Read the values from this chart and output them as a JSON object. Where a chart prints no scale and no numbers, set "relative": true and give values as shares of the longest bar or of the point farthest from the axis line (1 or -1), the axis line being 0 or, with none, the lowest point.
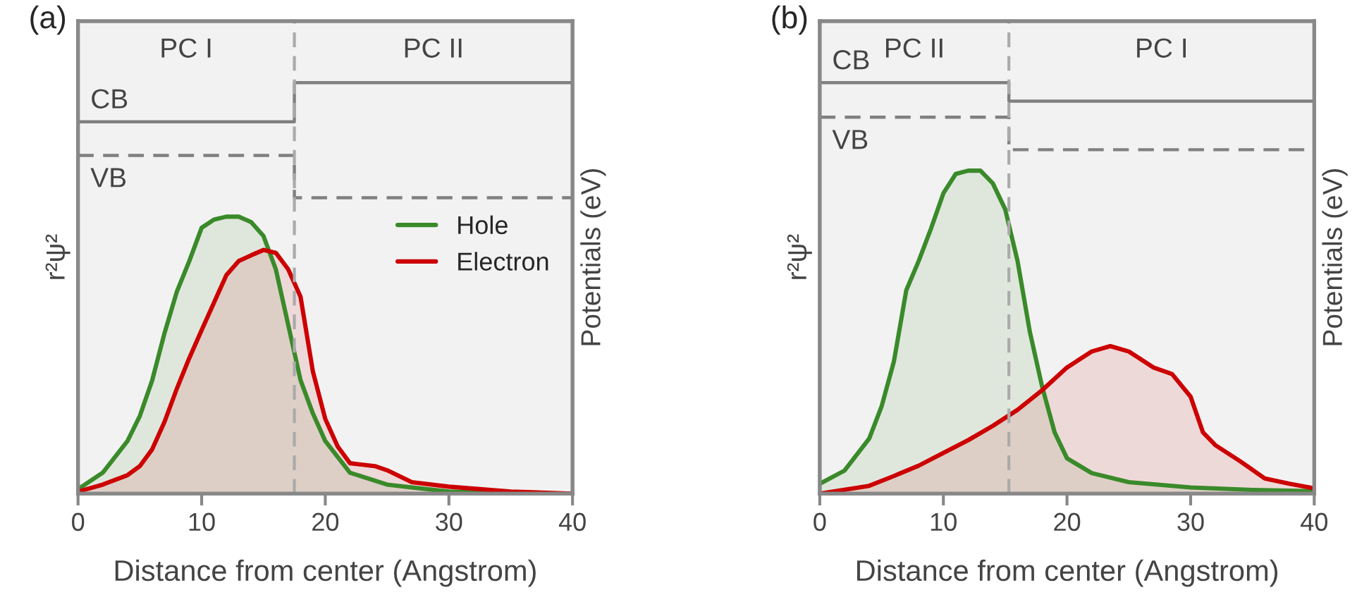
{
  "chart_data": [
    {
      "type": "area",
      "title": "(a)",
      "xlabel": "Distance from center (Angstrom)",
      "ylabel": "r²ψ²",
      "y2label": "Potentials (eV)",
      "relative": true,
      "xlim": [
        0,
        40
      ],
      "xticks": [
        0,
        10,
        20,
        30,
        40
      ],
      "tick_labels": "x",
      "legend": "center right",
      "grid": false,
      "series": [
        {
          "name": "Hole",
          "color": "#3a8a2a",
          "x": [
            0,
            2,
            4,
            5,
            6,
            7,
            8,
            9,
            10,
            11,
            12,
            13,
            14,
            15,
            16,
            17,
            18,
            19,
            20,
            22,
            25,
            30,
            35,
            40
          ],
          "values": [
            0.011,
            0.051,
            0.128,
            0.189,
            0.276,
            0.391,
            0.492,
            0.566,
            0.647,
            0.667,
            0.674,
            0.674,
            0.661,
            0.627,
            0.546,
            0.411,
            0.276,
            0.195,
            0.128,
            0.051,
            0.022,
            0.005,
            0,
            0
          ]
        },
        {
          "name": "Electron",
          "color": "#cc0000",
          "x": [
            0,
            2,
            4,
            5,
            6,
            7,
            8,
            9,
            10,
            11,
            12,
            13,
            14,
            15,
            16,
            17,
            18,
            19,
            20,
            21,
            22,
            24,
            25,
            27,
            30,
            35,
            40
          ],
          "values": [
            0.005,
            0.022,
            0.045,
            0.067,
            0.108,
            0.175,
            0.256,
            0.33,
            0.398,
            0.465,
            0.532,
            0.566,
            0.58,
            0.593,
            0.586,
            0.546,
            0.479,
            0.297,
            0.182,
            0.115,
            0.074,
            0.067,
            0.057,
            0.028,
            0.017,
            0.005,
            0
          ]
        },
        {
          "type": "step",
          "color": "#808080",
          "line_style": "solid",
          "x": [
            0,
            17.5,
            40
          ],
          "values": [
            0.905,
            1,
            1
          ]
        },
        {
          "type": "step",
          "color": "#808080",
          "line_style": "dashed",
          "x": [
            0,
            17.5,
            40
          ],
          "values": [
            0.823,
            0.72,
            0.72
          ]
        }
      ],
      "ref_lines": [
        {
          "axis": "x",
          "value": 17.5,
          "color": "#aaaaaa",
          "line_style": "dashed"
        }
      ],
      "bands": [
        {
          "axis": "x",
          "from": 0,
          "to": 17.5,
          "label": "PC I",
          "color": "#f2f2f2"
        },
        {
          "axis": "x",
          "from": 17.5,
          "to": 40,
          "label": "PC II",
          "color": "#f2f2f2"
        }
      ],
      "annotations": [
        "CB",
        "VB"
      ]
    },
    {
      "type": "area",
      "title": "(b)",
      "xlabel": "Distance from center (Angstrom)",
      "ylabel": "r²ψ²",
      "y2label": "Potentials (eV)",
      "relative": true,
      "xlim": [
        0,
        40
      ],
      "xticks": [
        0,
        10,
        20,
        30,
        40
      ],
      "tick_labels": "x",
      "grid": false,
      "series": [
        {
          "color": "#3a8a2a",
          "x": [
            0,
            2,
            4,
            5,
            6,
            7,
            8,
            9,
            10,
            11,
            12,
            13,
            14,
            15,
            16,
            17,
            18,
            19,
            20,
            22,
            25,
            30,
            35,
            40
          ],
          "values": [
            0.024,
            0.056,
            0.134,
            0.212,
            0.322,
            0.495,
            0.566,
            0.645,
            0.731,
            0.778,
            0.786,
            0.786,
            0.755,
            0.692,
            0.566,
            0.393,
            0.259,
            0.149,
            0.086,
            0.05,
            0.028,
            0.015,
            0.009,
            0.006
          ]
        },
        {
          "color": "#cc0000",
          "x": [
            0,
            4,
            6,
            8,
            10,
            12,
            14,
            16,
            18,
            20,
            22,
            23.5,
            25,
            27,
            28.5,
            30,
            31,
            32,
            34,
            36,
            38,
            40
          ],
          "values": [
            0,
            0.019,
            0.043,
            0.068,
            0.099,
            0.13,
            0.165,
            0.204,
            0.252,
            0.307,
            0.346,
            0.359,
            0.346,
            0.307,
            0.291,
            0.236,
            0.149,
            0.118,
            0.079,
            0.037,
            0.024,
            0.013
          ]
        },
        {
          "type": "step",
          "color": "#808080",
          "line_style": "solid",
          "x": [
            0,
            15.3,
            40
          ],
          "values": [
            1,
            0.955,
            0.955
          ]
        },
        {
          "type": "step",
          "color": "#808080",
          "line_style": "dashed",
          "x": [
            0,
            15.3,
            40
          ],
          "values": [
            0.916,
            0.837,
            0.837
          ]
        }
      ],
      "ref_lines": [
        {
          "axis": "x",
          "value": 15.3,
          "color": "#aaaaaa",
          "line_style": "dashed"
        }
      ],
      "bands": [
        {
          "axis": "x",
          "from": 0,
          "to": 15.3,
          "label": "PC II",
          "color": "#f2f2f2"
        },
        {
          "axis": "x",
          "from": 15.3,
          "to": 40,
          "label": "PC I",
          "color": "#f2f2f2"
        }
      ],
      "annotations": [
        "CB",
        "VB"
      ]
    }
  ]
}
